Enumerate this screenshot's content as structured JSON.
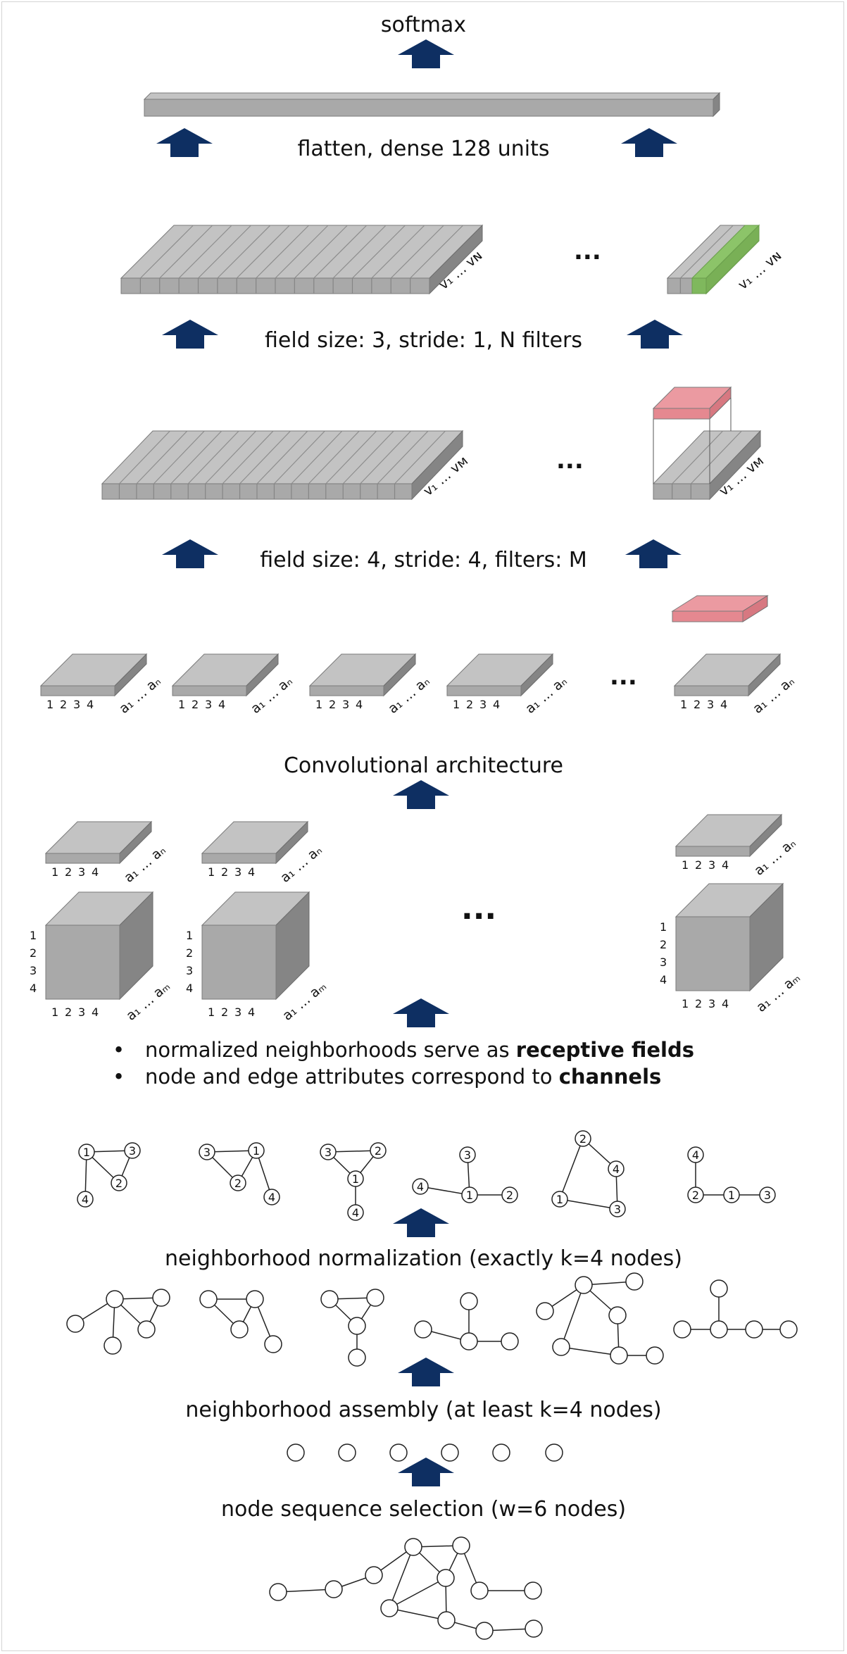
{
  "labels": {
    "softmax": "softmax",
    "flatten": "flatten, dense 128 units",
    "conv2": "field size: 3, stride: 1, N filters",
    "conv1": "field size: 4, stride: 4, filters: M",
    "conv_arch": "Convolutional architecture",
    "normalization": "neighborhood normalization (exactly k=4 nodes)",
    "assembly": "neighborhood assembly  (at least k=4 nodes)",
    "selection": "node sequence selection (w=6 nodes)"
  },
  "bullets": [
    {
      "text": "normalized neighborhoods serve as ",
      "bold": "receptive fields"
    },
    {
      "text": "node and edge attributes correspond to ",
      "bold": "channels"
    }
  ],
  "ellipsis": "...",
  "tick_nums": [
    "1",
    "2",
    "3",
    "4"
  ],
  "axis_labels": {
    "a_n": "a₁ … aₙ",
    "a_m": "a₁ … aₘ",
    "v_N": "v₁ … vɴ",
    "v_M": "v₁ … vᴍ"
  },
  "normalized_graphs": [
    [
      "1",
      "3",
      "2",
      "4"
    ],
    [
      "3",
      "1",
      "2",
      "4"
    ],
    [
      "3",
      "2",
      "1",
      "4"
    ],
    [
      "3",
      "4",
      "1",
      "2"
    ],
    [
      "2",
      "4",
      "1",
      "3"
    ],
    [
      "4",
      "2",
      "1",
      "3"
    ]
  ],
  "colors": {
    "arrow": "#0e2f62",
    "block_front": "#a9a9a9",
    "block_top": "#c3c3c3",
    "block_side": "#858585",
    "filter_pink": "#eb9aa1",
    "highlight_green": "#8cc469"
  }
}
